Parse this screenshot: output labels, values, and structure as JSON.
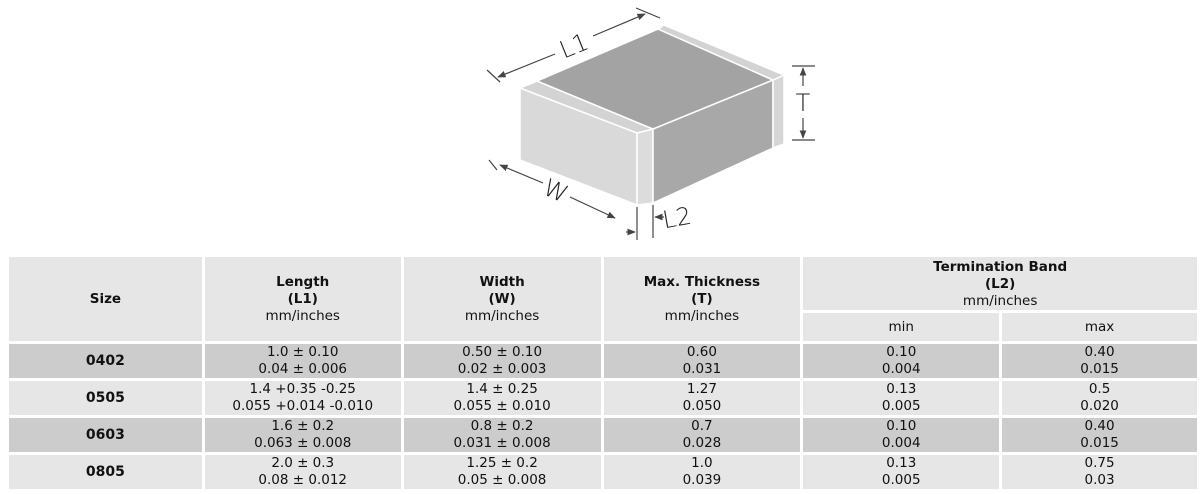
{
  "diagram": {
    "labels": {
      "length": "L1",
      "width": "W",
      "thickness": "T",
      "termination": "L2"
    }
  },
  "table": {
    "headers": {
      "size": "Size",
      "length": {
        "title": "Length",
        "symbol": "(L1)",
        "unit": "mm/inches"
      },
      "width": {
        "title": "Width",
        "symbol": "(W)",
        "unit": "mm/inches"
      },
      "thickness": {
        "title": "Max. Thickness",
        "symbol": "(T)",
        "unit": "mm/inches"
      },
      "termination": {
        "title": "Termination Band",
        "symbol": "(L2)",
        "unit": "mm/inches",
        "min": "min",
        "max": "max"
      }
    },
    "rows": [
      {
        "size": "0402",
        "length_mm": "1.0 ± 0.10",
        "length_in": "0.04 ± 0.006",
        "width_mm": "0.50 ± 0.10",
        "width_in": "0.02 ± 0.003",
        "thick_mm": "0.60",
        "thick_in": "0.031",
        "min_mm": "0.10",
        "min_in": "0.004",
        "max_mm": "0.40",
        "max_in": "0.015"
      },
      {
        "size": "0505",
        "length_mm": "1.4 +0.35 -0.25",
        "length_in": "0.055 +0.014 -0.010",
        "width_mm": "1.4 ± 0.25",
        "width_in": "0.055 ± 0.010",
        "thick_mm": "1.27",
        "thick_in": "0.050",
        "min_mm": "0.13",
        "min_in": "0.005",
        "max_mm": "0.5",
        "max_in": "0.020"
      },
      {
        "size": "0603",
        "length_mm": "1.6 ± 0.2",
        "length_in": "0.063 ± 0.008",
        "width_mm": "0.8 ± 0.2",
        "width_in": "0.031 ± 0.008",
        "thick_mm": "0.7",
        "thick_in": "0.028",
        "min_mm": "0.10",
        "min_in": "0.004",
        "max_mm": "0.40",
        "max_in": "0.015"
      },
      {
        "size": "0805",
        "length_mm": "2.0 ± 0.3",
        "length_in": "0.08 ± 0.012",
        "width_mm": "1.25 ± 0.2",
        "width_in": "0.05 ± 0.008",
        "thick_mm": "1.0",
        "thick_in": "0.039",
        "min_mm": "0.13",
        "min_in": "0.005",
        "max_mm": "0.75",
        "max_in": "0.03"
      }
    ]
  }
}
